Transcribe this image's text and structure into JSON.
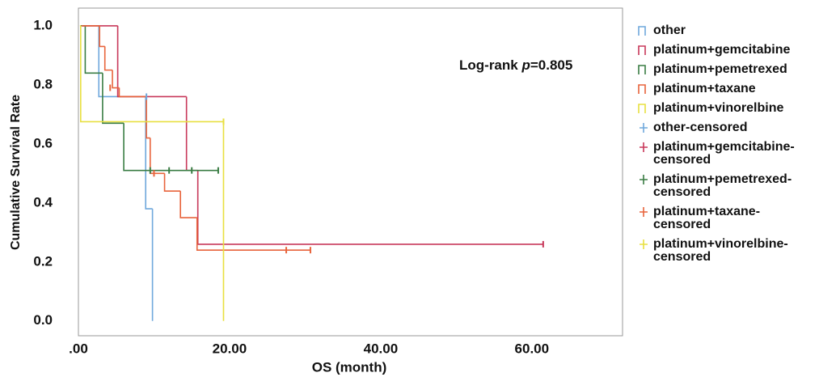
{
  "chart_data": {
    "type": "step",
    "x_label": "OS (month)",
    "y_label": "Cumulative Survival Rate",
    "annotation": {
      "prefix": "Log-rank",
      "italic": "p",
      "suffix": "=0.805"
    },
    "xlim": [
      0,
      72
    ],
    "xticks": [
      {
        "value": 0,
        "label": ".00"
      },
      {
        "value": 20,
        "label": "20.00"
      },
      {
        "value": 40,
        "label": "40.00"
      },
      {
        "value": 60,
        "label": "60.00"
      }
    ],
    "ylim": [
      -0.05,
      1.06
    ],
    "yticks": [
      {
        "value": 0,
        "label": "0.0"
      },
      0.2,
      0.4,
      0.6,
      0.8,
      {
        "value": 1,
        "label": "1.0"
      }
    ],
    "legend": "right",
    "series": [
      {
        "name": "other",
        "color": "#6fa8dc",
        "x": [
          0.6,
          2.7,
          8.9,
          9.8
        ],
        "values": [
          1.0,
          0.76,
          0.38,
          0.0
        ]
      },
      {
        "name": "platinum+gemcitabine",
        "color": "#c8385a",
        "x": [
          0.5,
          5.2,
          14.3,
          15.8,
          61.5
        ],
        "values": [
          1.0,
          0.76,
          0.51,
          0.26,
          0.26
        ]
      },
      {
        "name": "platinum+pemetrexed",
        "color": "#3a7d44",
        "x": [
          0.3,
          0.9,
          3.2,
          6.0,
          18.5
        ],
        "values": [
          1.0,
          0.84,
          0.67,
          0.51,
          0.51
        ]
      },
      {
        "name": "platinum+taxane",
        "color": "#e8643c",
        "x": [
          0.4,
          2.8,
          3.5,
          4.5,
          5.4,
          9.0,
          9.5,
          11.4,
          13.5,
          15.7,
          30.7
        ],
        "values": [
          1.0,
          0.93,
          0.85,
          0.79,
          0.76,
          0.62,
          0.5,
          0.44,
          0.35,
          0.24,
          0.24
        ]
      },
      {
        "name": "platinum+vinorelbine",
        "color": "#e8e040",
        "x": [
          0.2,
          0.3,
          19.2
        ],
        "values": [
          1.0,
          0.675,
          0.0
        ]
      },
      {
        "name": "other-censored",
        "color": "#6fa8dc",
        "censored": true,
        "x": [
          9.0
        ],
        "values": [
          0.76
        ]
      },
      {
        "name": "platinum+gemcitabine-censored",
        "color": "#c8385a",
        "censored": true,
        "x": [
          61.5
        ],
        "values": [
          0.26
        ]
      },
      {
        "name": "platinum+pemetrexed-censored",
        "color": "#3a7d44",
        "censored": true,
        "x": [
          9.5,
          12.0,
          15.0,
          18.5
        ],
        "values": [
          0.51,
          0.51,
          0.51,
          0.51
        ]
      },
      {
        "name": "platinum+taxane-censored",
        "color": "#e8643c",
        "censored": true,
        "x": [
          4.2,
          10.0,
          27.5,
          30.7
        ],
        "values": [
          0.79,
          0.5,
          0.24,
          0.24
        ]
      },
      {
        "name": "platinum+vinorelbine-censored",
        "color": "#e8e040",
        "censored": true,
        "x": [
          19.2
        ],
        "values": [
          0.675
        ]
      }
    ]
  }
}
